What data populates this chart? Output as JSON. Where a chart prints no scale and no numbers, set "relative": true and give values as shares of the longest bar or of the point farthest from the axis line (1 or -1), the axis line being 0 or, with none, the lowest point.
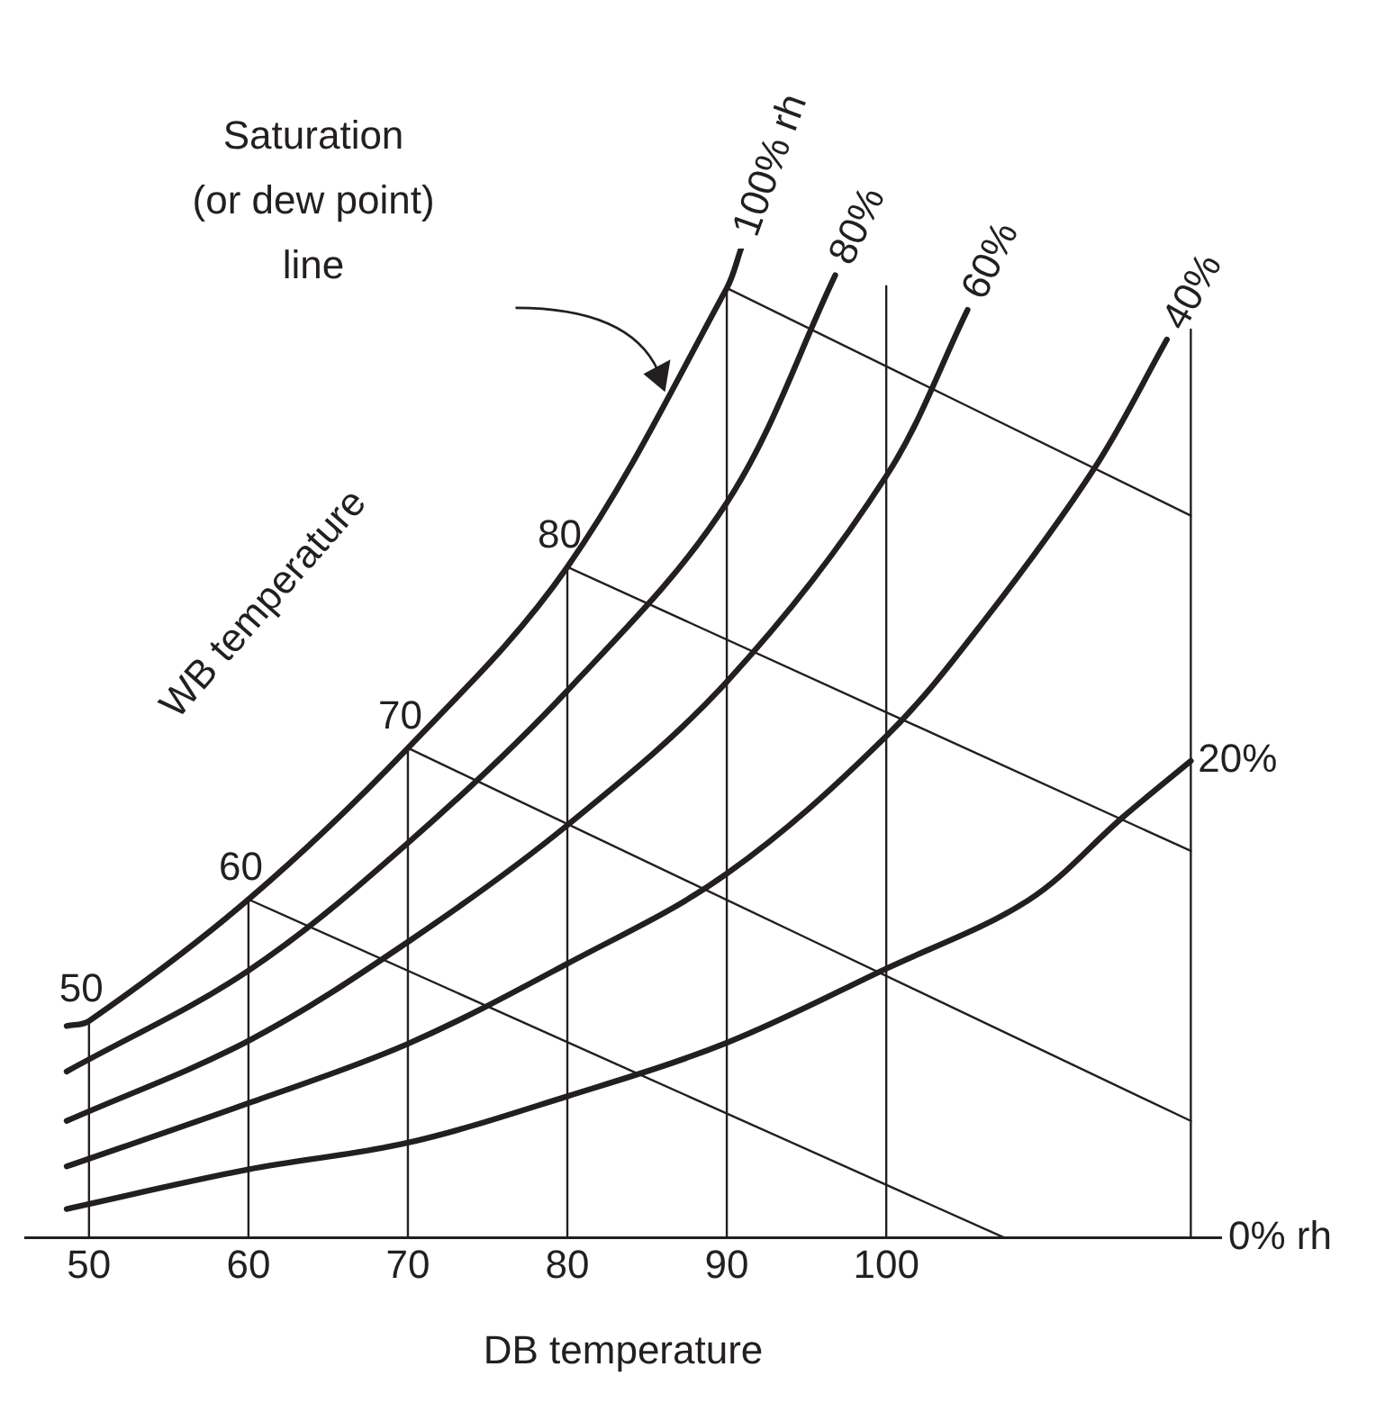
{
  "chart_data": {
    "type": "line",
    "relative": true,
    "xlabel": "DB temperature",
    "xlim": [
      46,
      121
    ],
    "xticks": [
      50,
      60,
      70,
      80,
      90,
      100
    ],
    "grid": false,
    "legend": false,
    "marker": "none",
    "line_style": "solid",
    "series": [
      {
        "name": "100% rh",
        "color": "#231f20",
        "x": [
          48.6,
          50,
          60,
          70,
          80,
          90,
          90.9
        ],
        "values": [
          0.214,
          0.219,
          0.342,
          0.495,
          0.678,
          0.96,
          1.0
        ]
      },
      {
        "name": "80%",
        "color": "#231f20",
        "x": [
          48.6,
          60,
          70,
          80,
          90,
          96.8
        ],
        "values": [
          0.168,
          0.27,
          0.399,
          0.553,
          0.743,
          0.973
        ]
      },
      {
        "name": "60%",
        "color": "#231f20",
        "x": [
          48.6,
          60,
          70,
          80,
          90,
          100,
          105.1
        ],
        "values": [
          0.118,
          0.199,
          0.299,
          0.417,
          0.562,
          0.77,
          0.938
        ]
      },
      {
        "name": "40%",
        "color": "#231f20",
        "x": [
          48.6,
          60,
          70,
          80,
          90,
          100,
          106.2,
          113.1,
          117.6
        ],
        "values": [
          0.072,
          0.136,
          0.196,
          0.277,
          0.368,
          0.507,
          0.625,
          0.779,
          0.908
        ]
      },
      {
        "name": "20%",
        "color": "#231f20",
        "x": [
          48.6,
          60,
          70,
          80,
          90,
          100,
          108.9,
          114.9,
          119.1
        ],
        "values": [
          0.029,
          0.069,
          0.096,
          0.143,
          0.197,
          0.272,
          0.341,
          0.426,
          0.482
        ]
      },
      {
        "color": "#231f20",
        "x": [
          50,
          50
        ],
        "values": [
          0,
          0.219
        ]
      },
      {
        "color": "#231f20",
        "x": [
          60,
          60
        ],
        "values": [
          0,
          0.342
        ]
      },
      {
        "color": "#231f20",
        "x": [
          70,
          70
        ],
        "values": [
          0,
          0.495
        ]
      },
      {
        "color": "#231f20",
        "x": [
          80,
          80
        ],
        "values": [
          0,
          0.678
        ]
      },
      {
        "color": "#231f20",
        "x": [
          90,
          90
        ],
        "values": [
          0,
          0.96
        ]
      },
      {
        "color": "#231f20",
        "x": [
          100,
          100
        ],
        "values": [
          0,
          0.962
        ]
      },
      {
        "color": "#231f20",
        "x": [
          119.1,
          119.1
        ],
        "values": [
          0,
          0.918
        ]
      },
      {
        "color": "#231f20",
        "x": [
          90,
          119.1
        ],
        "values": [
          0.96,
          0.73
        ]
      },
      {
        "color": "#231f20",
        "x": [
          80,
          119.1
        ],
        "values": [
          0.678,
          0.391
        ]
      },
      {
        "color": "#231f20",
        "x": [
          70,
          119.1
        ],
        "values": [
          0.495,
          0.118
        ]
      },
      {
        "color": "#231f20",
        "x": [
          60,
          107.4
        ],
        "values": [
          0.342,
          0
        ]
      }
    ],
    "annotations": [
      {
        "text": "50",
        "x": 50,
        "y": 0.219
      },
      {
        "text": "60",
        "x": 60,
        "y": 0.342
      },
      {
        "text": "70",
        "x": 70,
        "y": 0.495
      },
      {
        "text": "80",
        "x": 80,
        "y": 0.678
      },
      "Saturation\n(or dew point)\nline",
      "0% rh",
      "WB temperature"
    ]
  }
}
